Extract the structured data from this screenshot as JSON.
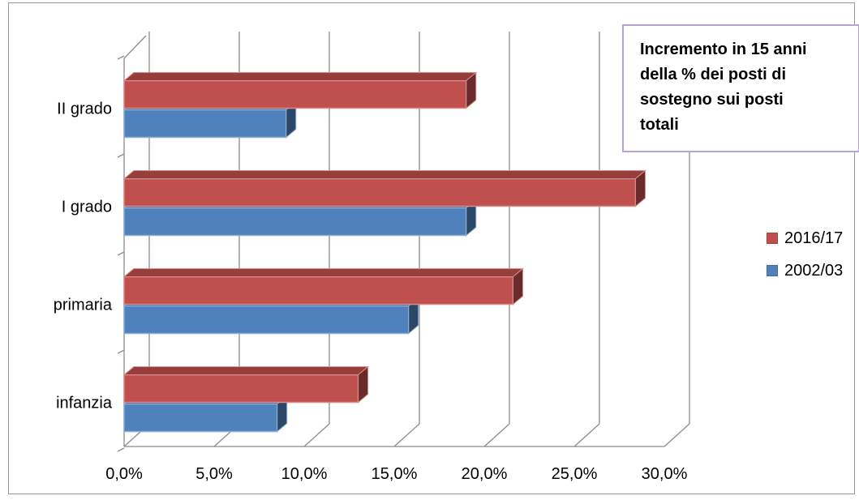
{
  "chart_data": {
    "type": "bar",
    "orientation": "horizontal",
    "style": "3d",
    "title": "Incremento in 15 anni\ndella % dei posti di\nsostegno sui posti\ntotali",
    "categories": [
      "infanzia",
      "primaria",
      "I grado",
      "II grado"
    ],
    "series": [
      {
        "name": "2002/03",
        "color": "#4f81bd",
        "values": [
          8.5,
          15.8,
          19.0,
          9.0
        ]
      },
      {
        "name": "2016/17",
        "color": "#c0504d",
        "values": [
          13.0,
          21.6,
          28.4,
          19.0
        ]
      }
    ],
    "xlim": [
      0,
      30
    ],
    "xticks": [
      "0,0%",
      "5,0%",
      "10,0%",
      "15,0%",
      "20,0%",
      "25,0%",
      "30,0%"
    ],
    "grid": true,
    "legend_position": "right",
    "legend_order": [
      "2016/17",
      "2002/03"
    ]
  }
}
